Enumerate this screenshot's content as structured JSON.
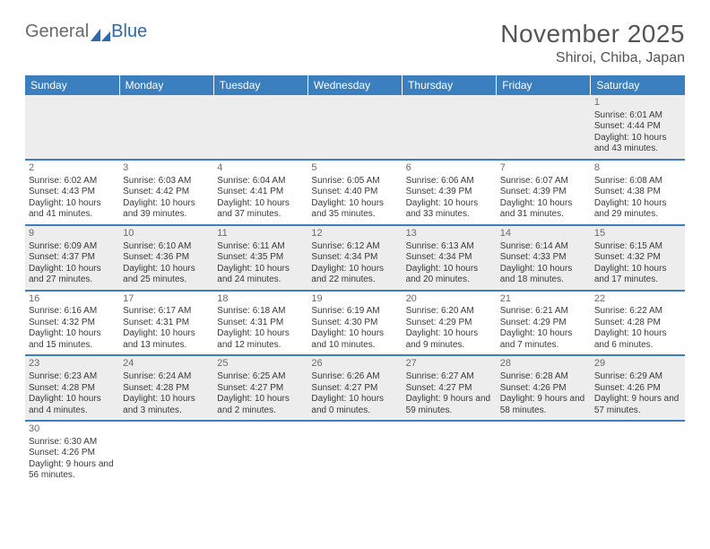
{
  "brand": {
    "part1": "General",
    "part2": "Blue"
  },
  "title": "November 2025",
  "location": "Shiroi, Chiba, Japan",
  "colors": {
    "header_bg": "#3b7fbf",
    "header_text": "#ffffff",
    "row_alt_bg": "#ededed",
    "text": "#3a3a3a",
    "title_text": "#555555",
    "logo_gray": "#6a6a6a",
    "logo_blue": "#2f6aa8",
    "border": "#3b7fbf"
  },
  "day_headers": [
    "Sunday",
    "Monday",
    "Tuesday",
    "Wednesday",
    "Thursday",
    "Friday",
    "Saturday"
  ],
  "weeks": [
    [
      null,
      null,
      null,
      null,
      null,
      null,
      {
        "n": "1",
        "sr": "Sunrise: 6:01 AM",
        "ss": "Sunset: 4:44 PM",
        "dl": "Daylight: 10 hours and 43 minutes."
      }
    ],
    [
      {
        "n": "2",
        "sr": "Sunrise: 6:02 AM",
        "ss": "Sunset: 4:43 PM",
        "dl": "Daylight: 10 hours and 41 minutes."
      },
      {
        "n": "3",
        "sr": "Sunrise: 6:03 AM",
        "ss": "Sunset: 4:42 PM",
        "dl": "Daylight: 10 hours and 39 minutes."
      },
      {
        "n": "4",
        "sr": "Sunrise: 6:04 AM",
        "ss": "Sunset: 4:41 PM",
        "dl": "Daylight: 10 hours and 37 minutes."
      },
      {
        "n": "5",
        "sr": "Sunrise: 6:05 AM",
        "ss": "Sunset: 4:40 PM",
        "dl": "Daylight: 10 hours and 35 minutes."
      },
      {
        "n": "6",
        "sr": "Sunrise: 6:06 AM",
        "ss": "Sunset: 4:39 PM",
        "dl": "Daylight: 10 hours and 33 minutes."
      },
      {
        "n": "7",
        "sr": "Sunrise: 6:07 AM",
        "ss": "Sunset: 4:39 PM",
        "dl": "Daylight: 10 hours and 31 minutes."
      },
      {
        "n": "8",
        "sr": "Sunrise: 6:08 AM",
        "ss": "Sunset: 4:38 PM",
        "dl": "Daylight: 10 hours and 29 minutes."
      }
    ],
    [
      {
        "n": "9",
        "sr": "Sunrise: 6:09 AM",
        "ss": "Sunset: 4:37 PM",
        "dl": "Daylight: 10 hours and 27 minutes."
      },
      {
        "n": "10",
        "sr": "Sunrise: 6:10 AM",
        "ss": "Sunset: 4:36 PM",
        "dl": "Daylight: 10 hours and 25 minutes."
      },
      {
        "n": "11",
        "sr": "Sunrise: 6:11 AM",
        "ss": "Sunset: 4:35 PM",
        "dl": "Daylight: 10 hours and 24 minutes."
      },
      {
        "n": "12",
        "sr": "Sunrise: 6:12 AM",
        "ss": "Sunset: 4:34 PM",
        "dl": "Daylight: 10 hours and 22 minutes."
      },
      {
        "n": "13",
        "sr": "Sunrise: 6:13 AM",
        "ss": "Sunset: 4:34 PM",
        "dl": "Daylight: 10 hours and 20 minutes."
      },
      {
        "n": "14",
        "sr": "Sunrise: 6:14 AM",
        "ss": "Sunset: 4:33 PM",
        "dl": "Daylight: 10 hours and 18 minutes."
      },
      {
        "n": "15",
        "sr": "Sunrise: 6:15 AM",
        "ss": "Sunset: 4:32 PM",
        "dl": "Daylight: 10 hours and 17 minutes."
      }
    ],
    [
      {
        "n": "16",
        "sr": "Sunrise: 6:16 AM",
        "ss": "Sunset: 4:32 PM",
        "dl": "Daylight: 10 hours and 15 minutes."
      },
      {
        "n": "17",
        "sr": "Sunrise: 6:17 AM",
        "ss": "Sunset: 4:31 PM",
        "dl": "Daylight: 10 hours and 13 minutes."
      },
      {
        "n": "18",
        "sr": "Sunrise: 6:18 AM",
        "ss": "Sunset: 4:31 PM",
        "dl": "Daylight: 10 hours and 12 minutes."
      },
      {
        "n": "19",
        "sr": "Sunrise: 6:19 AM",
        "ss": "Sunset: 4:30 PM",
        "dl": "Daylight: 10 hours and 10 minutes."
      },
      {
        "n": "20",
        "sr": "Sunrise: 6:20 AM",
        "ss": "Sunset: 4:29 PM",
        "dl": "Daylight: 10 hours and 9 minutes."
      },
      {
        "n": "21",
        "sr": "Sunrise: 6:21 AM",
        "ss": "Sunset: 4:29 PM",
        "dl": "Daylight: 10 hours and 7 minutes."
      },
      {
        "n": "22",
        "sr": "Sunrise: 6:22 AM",
        "ss": "Sunset: 4:28 PM",
        "dl": "Daylight: 10 hours and 6 minutes."
      }
    ],
    [
      {
        "n": "23",
        "sr": "Sunrise: 6:23 AM",
        "ss": "Sunset: 4:28 PM",
        "dl": "Daylight: 10 hours and 4 minutes."
      },
      {
        "n": "24",
        "sr": "Sunrise: 6:24 AM",
        "ss": "Sunset: 4:28 PM",
        "dl": "Daylight: 10 hours and 3 minutes."
      },
      {
        "n": "25",
        "sr": "Sunrise: 6:25 AM",
        "ss": "Sunset: 4:27 PM",
        "dl": "Daylight: 10 hours and 2 minutes."
      },
      {
        "n": "26",
        "sr": "Sunrise: 6:26 AM",
        "ss": "Sunset: 4:27 PM",
        "dl": "Daylight: 10 hours and 0 minutes."
      },
      {
        "n": "27",
        "sr": "Sunrise: 6:27 AM",
        "ss": "Sunset: 4:27 PM",
        "dl": "Daylight: 9 hours and 59 minutes."
      },
      {
        "n": "28",
        "sr": "Sunrise: 6:28 AM",
        "ss": "Sunset: 4:26 PM",
        "dl": "Daylight: 9 hours and 58 minutes."
      },
      {
        "n": "29",
        "sr": "Sunrise: 6:29 AM",
        "ss": "Sunset: 4:26 PM",
        "dl": "Daylight: 9 hours and 57 minutes."
      }
    ],
    [
      {
        "n": "30",
        "sr": "Sunrise: 6:30 AM",
        "ss": "Sunset: 4:26 PM",
        "dl": "Daylight: 9 hours and 56 minutes."
      },
      null,
      null,
      null,
      null,
      null,
      null
    ]
  ]
}
